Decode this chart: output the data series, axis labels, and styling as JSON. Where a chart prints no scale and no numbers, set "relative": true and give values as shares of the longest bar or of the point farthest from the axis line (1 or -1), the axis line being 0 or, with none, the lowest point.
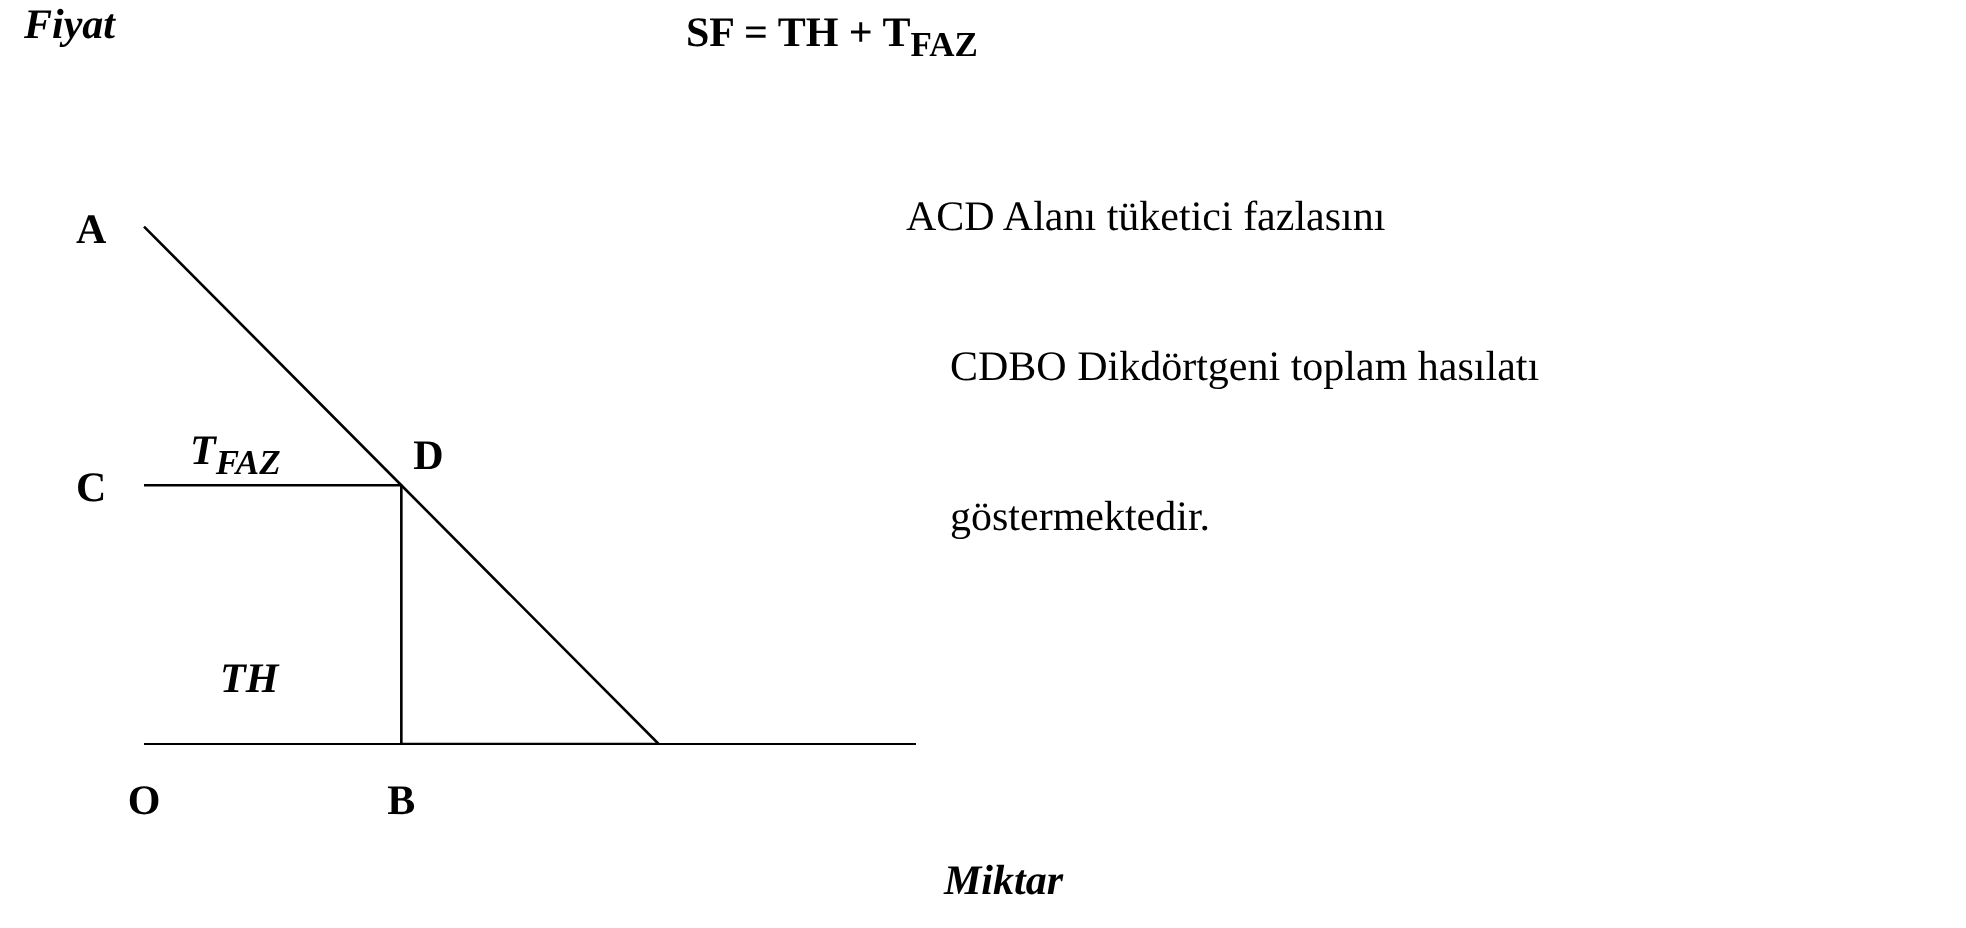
{
  "chart_data": {
    "type": "line",
    "title": "SF = TH + T$_{FAZ}$",
    "xlabel": "Miktar",
    "ylabel": "Fiyat",
    "relative": true,
    "categories": [
      "O",
      "B",
      null,
      null
    ],
    "series": [
      {
        "color": "#000000",
        "values": [
          1,
          0.5,
          0,
          null
        ]
      },
      {
        "type": "step",
        "color": "#000000",
        "values": [
          0.5,
          0.5,
          0,
          null
        ]
      }
    ],
    "annotations": [
      {
        "text": "A",
        "x": "O",
        "y": 1
      },
      {
        "text": "C",
        "x": "O",
        "y": 0.5
      },
      {
        "text": "D",
        "x": "B",
        "y": 0.5
      },
      "T$_{FAZ}$",
      "TH",
      "ACD Alanı tüketici fazlasını",
      "CDBO Dikdörtgeni toplam hasılatı",
      "göstermektedir."
    ]
  }
}
